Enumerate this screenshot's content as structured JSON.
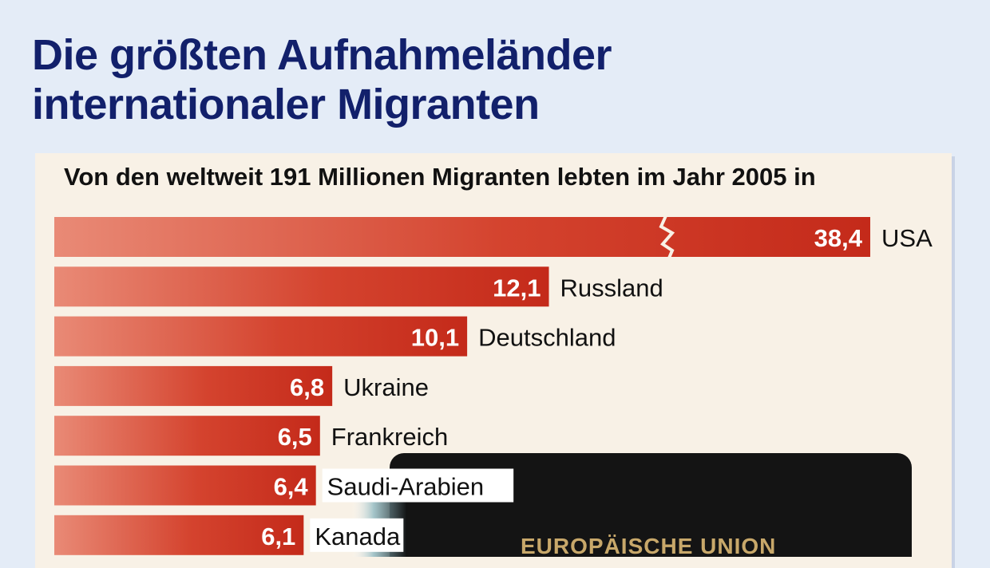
{
  "title_line1": "Die größten Aufnahmeländer",
  "title_line2": "internationaler Migranten",
  "chart_data": {
    "type": "bar",
    "orientation": "horizontal",
    "title": "Von den weltweit 191 Millionen Migranten lebten im Jahr 2005 in",
    "categories": [
      "USA",
      "Russland",
      "Deutschland",
      "Ukraine",
      "Frankreich",
      "Saudi-Arabien",
      "Kanada"
    ],
    "values": [
      38.4,
      12.1,
      10.1,
      6.8,
      6.5,
      6.4,
      6.1
    ],
    "value_labels": [
      "38,4",
      "12,1",
      "10,1",
      "6,8",
      "6,5",
      "6,4",
      "6,1"
    ],
    "axis_break_on": "USA",
    "bar_color": "#c9301f",
    "background_color": "#f8f1e6"
  },
  "eu_box_label": "EUROPÄISCHE UNION"
}
